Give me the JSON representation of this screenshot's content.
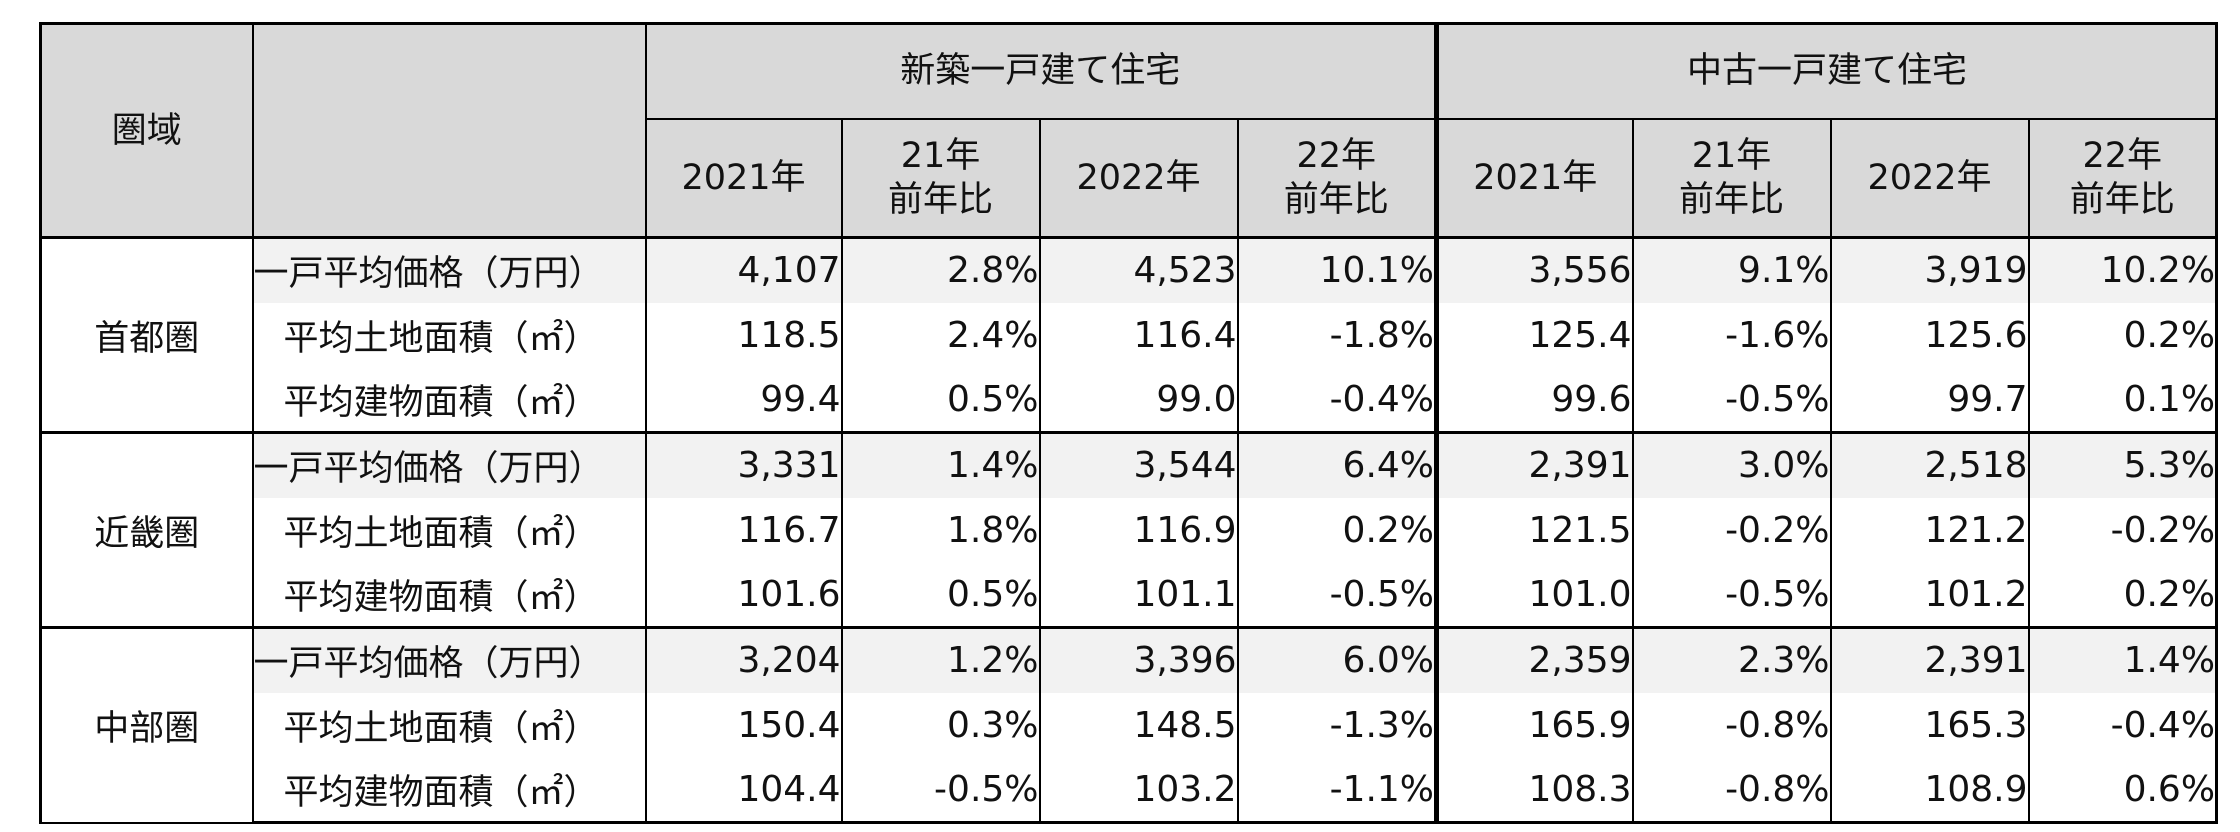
{
  "chart_data": {
    "type": "table",
    "header": {
      "region_label": "圏域",
      "groups": [
        "新築一戸建て住宅",
        "中古一戸建て住宅"
      ],
      "columns": [
        [
          "2021年"
        ],
        [
          "21年",
          "前年比"
        ],
        [
          "2022年"
        ],
        [
          "22年",
          "前年比"
        ],
        [
          "2021年"
        ],
        [
          "21年",
          "前年比"
        ],
        [
          "2022年"
        ],
        [
          "22年",
          "前年比"
        ]
      ]
    },
    "regions": [
      {
        "name": "首都圏",
        "rows": [
          {
            "label": "一戸平均価格（万円）",
            "values": [
              "4,107",
              "2.8%",
              "4,523",
              "10.1%",
              "3,556",
              "9.1%",
              "3,919",
              "10.2%"
            ]
          },
          {
            "label": "平均土地面積（㎡）",
            "values": [
              "118.5",
              "2.4%",
              "116.4",
              "-1.8%",
              "125.4",
              "-1.6%",
              "125.6",
              "0.2%"
            ]
          },
          {
            "label": "平均建物面積（㎡）",
            "values": [
              "99.4",
              "0.5%",
              "99.0",
              "-0.4%",
              "99.6",
              "-0.5%",
              "99.7",
              "0.1%"
            ]
          }
        ]
      },
      {
        "name": "近畿圏",
        "rows": [
          {
            "label": "一戸平均価格（万円）",
            "values": [
              "3,331",
              "1.4%",
              "3,544",
              "6.4%",
              "2,391",
              "3.0%",
              "2,518",
              "5.3%"
            ]
          },
          {
            "label": "平均土地面積（㎡）",
            "values": [
              "116.7",
              "1.8%",
              "116.9",
              "0.2%",
              "121.5",
              "-0.2%",
              "121.2",
              "-0.2%"
            ]
          },
          {
            "label": "平均建物面積（㎡）",
            "values": [
              "101.6",
              "0.5%",
              "101.1",
              "-0.5%",
              "101.0",
              "-0.5%",
              "101.2",
              "0.2%"
            ]
          }
        ]
      },
      {
        "name": "中部圏",
        "rows": [
          {
            "label": "一戸平均価格（万円）",
            "values": [
              "3,204",
              "1.2%",
              "3,396",
              "6.0%",
              "2,359",
              "2.3%",
              "2,391",
              "1.4%"
            ]
          },
          {
            "label": "平均土地面積（㎡）",
            "values": [
              "150.4",
              "0.3%",
              "148.5",
              "-1.3%",
              "165.9",
              "-0.8%",
              "165.3",
              "-0.4%"
            ]
          },
          {
            "label": "平均建物面積（㎡）",
            "values": [
              "104.4",
              "-0.5%",
              "103.2",
              "-1.1%",
              "108.3",
              "-0.8%",
              "108.9",
              "0.6%"
            ]
          }
        ]
      }
    ],
    "colors": {
      "header_bg": "#d9d9d9",
      "price_row_bg": "#f2f2f2",
      "border": "#000000"
    }
  }
}
